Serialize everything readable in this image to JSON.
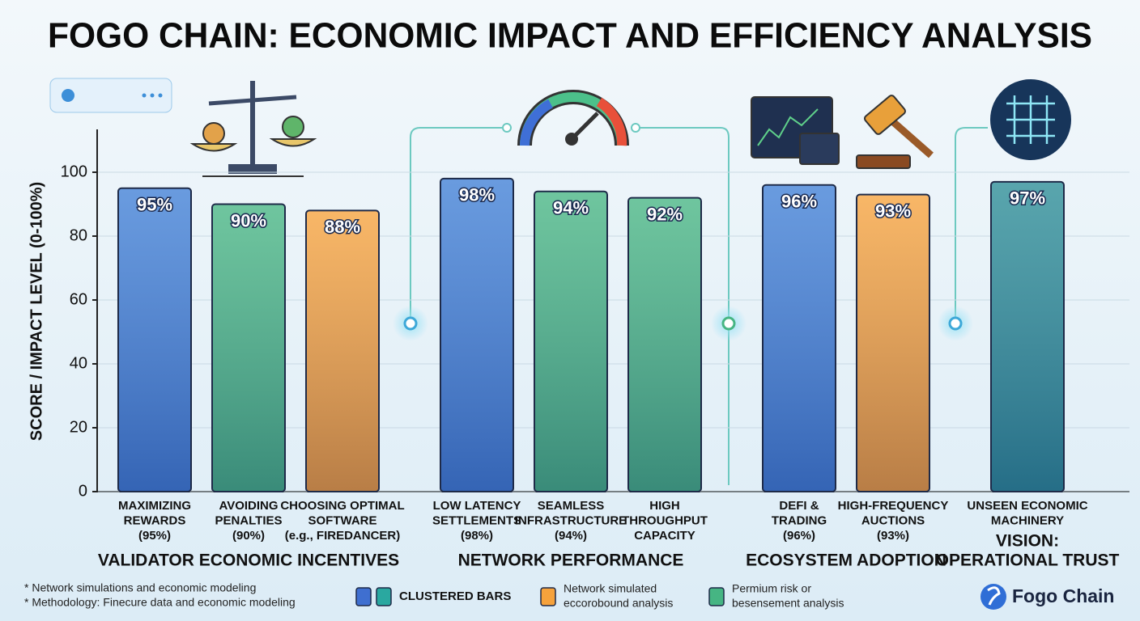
{
  "chart_data": {
    "type": "bar",
    "title": "FOGO CHAIN: ECONOMIC IMPACT AND EFFICIENCY ANALYSIS",
    "y_label": "SCORE / IMPACT LEVEL (0-100%)",
    "ylim": [
      0,
      110
    ],
    "yticks": [
      0,
      20,
      40,
      60,
      80,
      100
    ],
    "grid": true,
    "groups": [
      {
        "name": [
          "VALIDATOR ECONOMIC INCENTIVES"
        ],
        "categories": [
          [
            "MAXIMIZING",
            "REWARDS",
            "(95%)"
          ],
          [
            "AVOIDING",
            "PENALTIES",
            "(90%)"
          ],
          [
            "CHOOSING OPTIMAL",
            "SOFTWARE",
            "(e.g., FIREDANCER)"
          ]
        ],
        "values": [
          95,
          90,
          88
        ],
        "value_labels": [
          "95%",
          "90%",
          "88%"
        ],
        "colors": [
          "#3f7fd6",
          "#46b583",
          "#f6a23c"
        ]
      },
      {
        "name": [
          "NETWORK PERFORMANCE"
        ],
        "categories": [
          [
            "LOW LATENCY",
            "SETTLEMENTS",
            "(98%)"
          ],
          [
            "SEAMLESS",
            "INFRASTRUCTURE",
            "(94%)"
          ],
          [
            "HIGH",
            "THROUGHPUT",
            "CAPACITY"
          ]
        ],
        "values": [
          98,
          94,
          92
        ],
        "value_labels": [
          "98%",
          "94%",
          "92%"
        ],
        "colors": [
          "#3f7fd6",
          "#46b583",
          "#46b583"
        ]
      },
      {
        "name": [
          "ECOSYSTEM ADOPTION"
        ],
        "categories": [
          [
            "DEFI &",
            "TRADING",
            "(96%)"
          ],
          [
            "HIGH-FREQUENCY",
            "AUCTIONS",
            "(93%)"
          ]
        ],
        "values": [
          96,
          93
        ],
        "value_labels": [
          "96%",
          "93%"
        ],
        "colors": [
          "#3f7fd6",
          "#f6a23c"
        ]
      },
      {
        "name": [
          "VISION:",
          "OPERATIONAL TRUST"
        ],
        "categories": [
          [
            "UNSEEN ECONOMIC",
            "MACHINERY"
          ]
        ],
        "values": [
          97
        ],
        "value_labels": [
          "97%"
        ],
        "colors": [
          "#2a8c96"
        ]
      }
    ],
    "legend": [
      {
        "label": [
          "CLUSTERED BARS"
        ],
        "colors": [
          "#3f6fd0",
          "#2aa8a0"
        ]
      },
      {
        "label": [
          "Network simulated",
          "eccorobound analysis"
        ],
        "colors": [
          "#f6a23c"
        ]
      },
      {
        "label": [
          "Permium risk or",
          "besensement analysis"
        ],
        "colors": [
          "#46b583"
        ]
      }
    ],
    "footnotes": [
      "* Network simulations and economic modeling",
      "* Methodology: Finecure data and economic modeling"
    ],
    "brand": "Fogo Chain"
  }
}
